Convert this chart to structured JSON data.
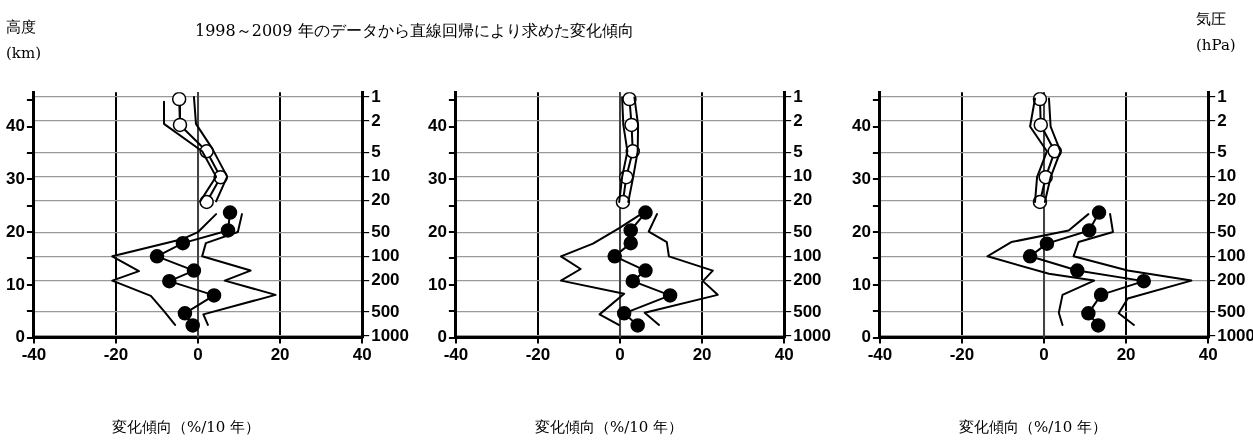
{
  "chart_data": [
    {
      "type": "line",
      "title": "1998～2009 年のデータから直線回帰により求めた変化傾向",
      "ylabel": "高度 (km)",
      "xlabel": "変化傾向（%/10 年）",
      "xlim": [
        -40,
        40
      ],
      "xticks": [
        -40,
        -20,
        0,
        20,
        40
      ],
      "ylim": [
        0,
        46.5
      ],
      "yticks": [
        0,
        {
          "value": 5,
          "label": null
        },
        10,
        {
          "value": 15,
          "label": null
        },
        20,
        {
          "value": 25,
          "label": null
        },
        30,
        {
          "value": 35,
          "label": null
        },
        40,
        {
          "value": 45,
          "label": null
        }
      ],
      "y2lim": [
        1046,
        0.87
      ],
      "y2ticks": [
        1,
        2,
        5,
        10,
        20,
        50,
        100,
        200,
        500,
        1000
      ],
      "log": "y2",
      "grid": true,
      "ref_lines": [
        {
          "axis": "x",
          "value": 0,
          "color": "#444444"
        }
      ],
      "series": [
        {
          "type": "line",
          "marker": "none",
          "color": "#000000",
          "x": [
            -5.6,
            -8.3,
            -11.5,
            -20.9,
            -14.4,
            -20.9,
            -3.7,
            0,
            4.4
          ],
          "values": [
            2.4,
            5.0,
            7.9,
            10.8,
            12.6,
            15.4,
            18.7,
            20.0,
            23.4
          ]
        },
        {
          "type": "line",
          "marker": "none",
          "color": "#000000",
          "x": [
            2.4,
            1.3,
            18.9,
            6.5,
            12.8,
            1,
            1.9,
            9.7,
            10.7
          ],
          "values": [
            2.4,
            4.4,
            8.1,
            10.8,
            12.7,
            15.4,
            17.9,
            20.0,
            23.4
          ]
        },
        {
          "type": "line",
          "marker": "none",
          "color": "#000000",
          "x": [
            -8.3,
            -8.3,
            1,
            4.4,
            0.5
          ],
          "values": [
            44.7,
            40.5,
            35.3,
            30.5,
            25.8
          ]
        },
        {
          "type": "line",
          "marker": "none",
          "color": "#000000",
          "x": [
            -1,
            -0.5,
            3.4,
            7.1,
            4.4
          ],
          "values": [
            45.6,
            40.5,
            35.9,
            30.5,
            25.8
          ]
        },
        {
          "type": "line",
          "marker": "circle",
          "color": "#000000",
          "x": [
            7.8,
            7.3,
            -3.7,
            -10,
            -1,
            -7,
            3.9,
            -3.2,
            -1.3
          ],
          "values": [
            23.7,
            20.3,
            17.9,
            15.4,
            12.7,
            10.7,
            8.0,
            4.6,
            2.3
          ]
        },
        {
          "type": "line",
          "marker": "circle",
          "color": "#000000",
          "colors": [
            "#ffffff",
            "#ffffff",
            "#ffffff",
            "#ffffff",
            "#ffffff"
          ],
          "x": [
            -4.6,
            -4.4,
            2.1,
            5.5,
            2.1
          ],
          "values": [
            45.2,
            40.3,
            35.3,
            30.4,
            25.7
          ]
        }
      ]
    },
    {
      "type": "line",
      "xlabel": "変化傾向（%/10 年）",
      "xlim": [
        -40,
        40
      ],
      "xticks": [
        -40,
        -20,
        0,
        20,
        40
      ],
      "ylim": [
        0,
        46.5
      ],
      "yticks": [
        0,
        {
          "value": 5,
          "label": null
        },
        10,
        {
          "value": 15,
          "label": null
        },
        20,
        {
          "value": 25,
          "label": null
        },
        30,
        {
          "value": 35,
          "label": null
        },
        40,
        {
          "value": 45,
          "label": null
        }
      ],
      "y2lim": [
        1046,
        0.87
      ],
      "y2ticks": [
        1,
        2,
        5,
        10,
        20,
        50,
        100,
        200,
        500,
        1000
      ],
      "log": "y2",
      "grid": true,
      "ref_lines": [
        {
          "axis": "x",
          "value": 0,
          "color": "#444444"
        }
      ],
      "series": [
        {
          "type": "line",
          "marker": "none",
          "color": "#000000",
          "x": [
            -0.3,
            -5,
            1,
            -14.4,
            -9.6,
            -14.4,
            -6.6,
            -0.3,
            5.1
          ],
          "values": [
            2.4,
            4.4,
            8.3,
            10.8,
            13.0,
            15.4,
            17.8,
            20.7,
            23.4
          ]
        },
        {
          "type": "line",
          "marker": "none",
          "color": "#000000",
          "x": [
            9.5,
            6,
            23.8,
            20.2,
            22.6,
            11.9,
            11.4,
            7,
            9
          ],
          "values": [
            2.4,
            4.7,
            8.1,
            10.7,
            12.7,
            15.4,
            18.1,
            20.1,
            23.4
          ]
        },
        {
          "type": "line",
          "marker": "none",
          "color": "#000000",
          "x": [
            0.5,
            0.8,
            1.8,
            0.5,
            -0.2
          ],
          "values": [
            45.5,
            40.3,
            35.3,
            30.4,
            25.7
          ]
        },
        {
          "type": "line",
          "marker": "none",
          "color": "#000000",
          "x": [
            3.5,
            4.4,
            4.3,
            3.2,
            2.0
          ],
          "values": [
            45.5,
            40.3,
            35.3,
            30.4,
            25.7
          ]
        },
        {
          "type": "line",
          "marker": "circle",
          "color": "#000000",
          "x": [
            6.2,
            2.6,
            2.6,
            -1.3,
            6.2,
            3.1,
            12.2,
            1,
            4.3
          ],
          "values": [
            23.7,
            20.3,
            17.9,
            15.4,
            12.7,
            10.7,
            8.0,
            4.6,
            2.3
          ]
        },
        {
          "type": "line",
          "marker": "circle",
          "color": "#000000",
          "colors": [
            "#ffffff",
            "#ffffff",
            "#ffffff",
            "#ffffff",
            "#ffffff"
          ],
          "x": [
            2.3,
            2.8,
            3.1,
            1.5,
            0.7
          ],
          "values": [
            45.2,
            40.3,
            35.3,
            30.4,
            25.7
          ]
        }
      ]
    },
    {
      "type": "line",
      "y2label": "気圧 (hPa)",
      "xlabel": "変化傾向（%/10 年）",
      "xlim": [
        -40,
        40
      ],
      "xticks": [
        -40,
        -20,
        0,
        20,
        40
      ],
      "ylim": [
        0,
        46.5
      ],
      "yticks": [
        0,
        {
          "value": 5,
          "label": null
        },
        10,
        {
          "value": 15,
          "label": null
        },
        20,
        {
          "value": 25,
          "label": null
        },
        30,
        {
          "value": 35,
          "label": null
        },
        40,
        {
          "value": 45,
          "label": null
        }
      ],
      "y2lim": [
        1046,
        0.87
      ],
      "y2ticks": [
        1,
        2,
        5,
        10,
        20,
        50,
        100,
        200,
        500,
        1000
      ],
      "log": "y2",
      "grid": true,
      "ref_lines": [
        {
          "axis": "x",
          "value": 0,
          "color": "#444444"
        }
      ],
      "series": [
        {
          "type": "line",
          "marker": "none",
          "color": "#000000",
          "x": [
            4.5,
            3.6,
            4.5,
            12.2,
            1.2,
            -13.8,
            -8,
            6,
            10.8
          ],
          "values": [
            2.4,
            4.7,
            8.1,
            10.8,
            12.1,
            15.4,
            18.1,
            20.3,
            23.4
          ]
        },
        {
          "type": "line",
          "marker": "none",
          "color": "#000000",
          "x": [
            21.9,
            18.2,
            20.4,
            35.9,
            20.4,
            7.2,
            8.4,
            16.8,
            16.1
          ],
          "values": [
            2.4,
            4.6,
            7.4,
            10.8,
            12.7,
            15.4,
            18.1,
            20.0,
            23.4
          ]
        },
        {
          "type": "line",
          "marker": "none",
          "color": "#000000",
          "x": [
            -2.2,
            -3.4,
            0.7,
            -1.7,
            -2.2
          ],
          "values": [
            45.3,
            40.0,
            35.3,
            30.4,
            25.7
          ]
        },
        {
          "type": "line",
          "marker": "none",
          "color": "#000000",
          "x": [
            1.2,
            1.6,
            4,
            1.6,
            0.2
          ],
          "values": [
            45.3,
            40.0,
            35.3,
            30.4,
            25.7
          ]
        },
        {
          "type": "line",
          "marker": "circle",
          "color": "#000000",
          "x": [
            13.4,
            11,
            0.7,
            -3.4,
            8.1,
            24.3,
            13.9,
            10.8,
            13.2
          ],
          "values": [
            23.7,
            20.3,
            17.8,
            15.4,
            12.7,
            10.7,
            8.1,
            4.6,
            2.3
          ]
        },
        {
          "type": "line",
          "marker": "circle",
          "color": "#000000",
          "colors": [
            "#ffffff",
            "#ffffff",
            "#ffffff",
            "#ffffff",
            "#ffffff"
          ],
          "x": [
            -1,
            -0.8,
            2.6,
            0.4,
            -1
          ],
          "values": [
            45.2,
            40.3,
            35.3,
            30.4,
            25.7
          ]
        }
      ]
    }
  ]
}
